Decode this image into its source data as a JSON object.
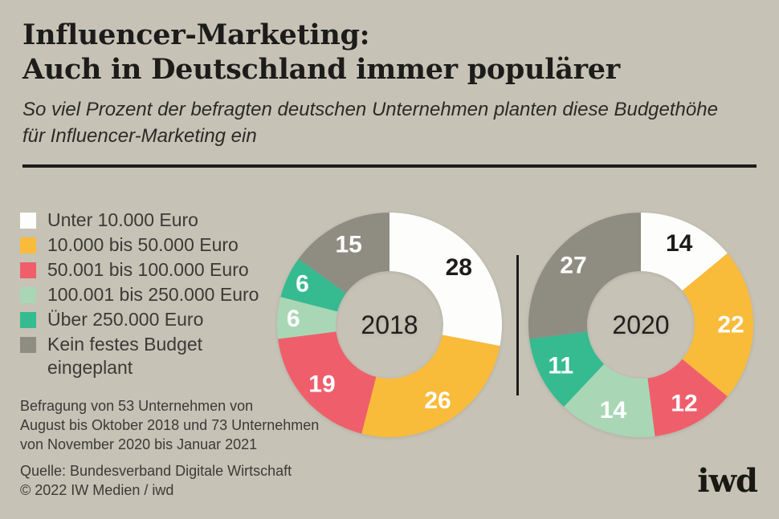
{
  "header": {
    "title_line1": "Influencer-Marketing:",
    "title_line2": "Auch in Deutschland immer populärer",
    "subtitle_line1": "So viel Prozent der befragten deutschen Unternehmen planten diese Budgethöhe",
    "subtitle_line2": "für Influencer-Marketing ein"
  },
  "colors": {
    "background": "#c6c2b6",
    "text_dark": "#1d1c1a",
    "text_body": "#3b3a36",
    "divider": "#1d1c1a"
  },
  "legend": {
    "items": [
      {
        "label": "Unter 10.000 Euro",
        "color": "#fdfdfb"
      },
      {
        "label": "10.000 bis 50.000 Euro",
        "color": "#f9bb3a"
      },
      {
        "label": "50.001 bis 100.000 Euro",
        "color": "#ef5f6b"
      },
      {
        "label": "100.001 bis 250.000 Euro",
        "color": "#a9d7b6"
      },
      {
        "label": "Über 250.000 Euro",
        "color": "#35bb8f"
      },
      {
        "label": "Kein festes Budget eingeplant",
        "color": "#8f8c82"
      }
    ]
  },
  "chart_data": [
    {
      "type": "pie",
      "subtype": "donut",
      "center_label": "2018",
      "unit": "percent",
      "direction": "clockwise",
      "start_angle_deg": 0,
      "categories": [
        "Unter 10.000 Euro",
        "10.000 bis 50.000 Euro",
        "50.001 bis 100.000 Euro",
        "100.001 bis 250.000 Euro",
        "Über 250.000 Euro",
        "Kein festes Budget eingeplant"
      ],
      "values": [
        28,
        26,
        19,
        6,
        6,
        15
      ],
      "colors": [
        "#fdfdfb",
        "#f9bb3a",
        "#ef5f6b",
        "#a9d7b6",
        "#35bb8f",
        "#8f8c82"
      ],
      "value_label_colors": [
        "#1d1c1a",
        "#ffffff",
        "#ffffff",
        "#ffffff",
        "#ffffff",
        "#ffffff"
      ]
    },
    {
      "type": "pie",
      "subtype": "donut",
      "center_label": "2020",
      "unit": "percent",
      "direction": "clockwise",
      "start_angle_deg": 0,
      "categories": [
        "Unter 10.000 Euro",
        "10.000 bis 50.000 Euro",
        "50.001 bis 100.000 Euro",
        "100.001 bis 250.000 Euro",
        "Über 250.000 Euro",
        "Kein festes Budget eingeplant"
      ],
      "values": [
        14,
        22,
        12,
        14,
        11,
        27
      ],
      "colors": [
        "#fdfdfb",
        "#f9bb3a",
        "#ef5f6b",
        "#a9d7b6",
        "#35bb8f",
        "#8f8c82"
      ],
      "value_label_colors": [
        "#1d1c1a",
        "#ffffff",
        "#ffffff",
        "#ffffff",
        "#ffffff",
        "#ffffff"
      ]
    }
  ],
  "footnote": {
    "lines": [
      "Befragung von 53 Unternehmen von",
      "August bis Oktober 2018 und 73 Unternehmen",
      "von November 2020 bis Januar 2021"
    ]
  },
  "source": {
    "lines": [
      "Quelle: Bundesverband Digitale Wirtschaft",
      "© 2022 IW Medien / iwd"
    ]
  },
  "logo": {
    "text": "iwd"
  }
}
